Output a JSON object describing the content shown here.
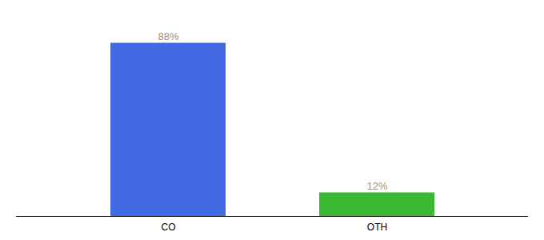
{
  "chart_data": {
    "type": "bar",
    "categories": [
      "CO",
      "OTH"
    ],
    "values": [
      88,
      12
    ],
    "value_labels": [
      "88%",
      "12%"
    ],
    "colors": [
      "#4169e1",
      "#3cb934"
    ],
    "ylim": [
      0,
      100
    ],
    "data_labels": true,
    "tick_labels": "x",
    "grid": false
  }
}
